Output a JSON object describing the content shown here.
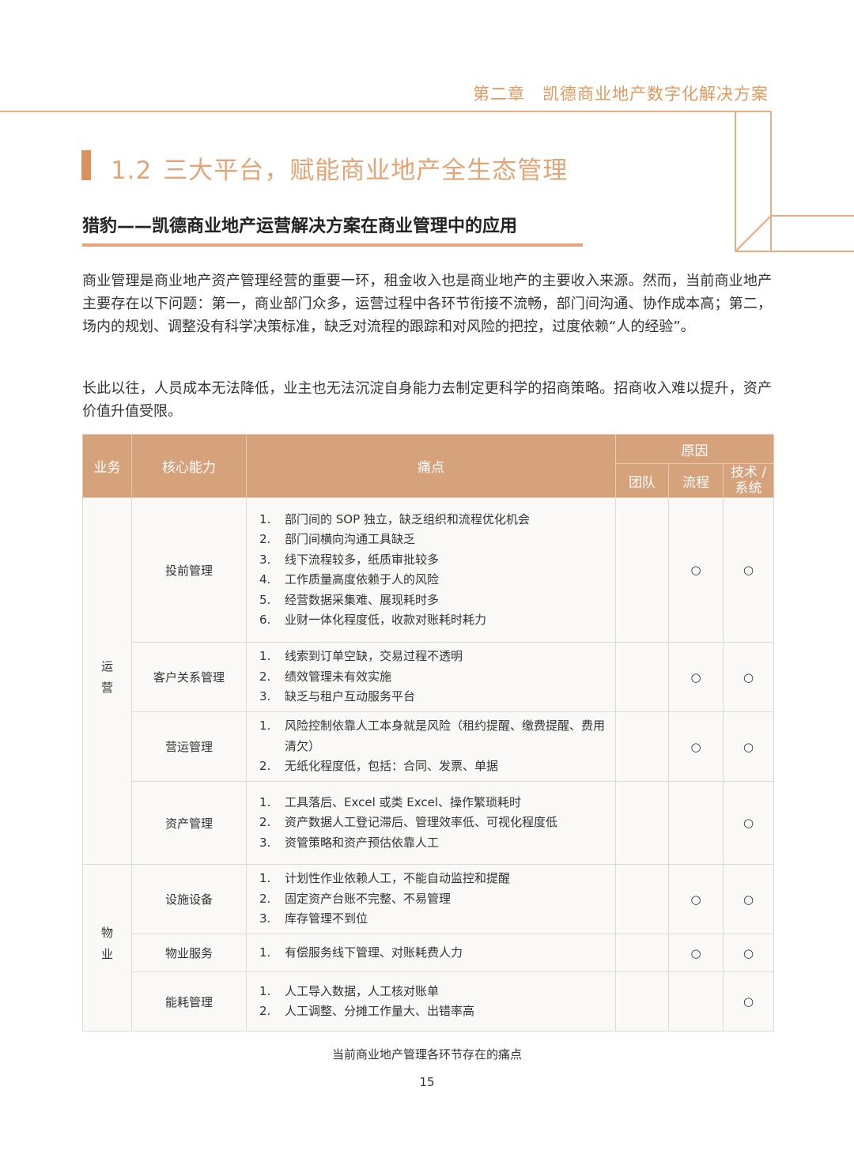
{
  "header": {
    "chapter": "第二章",
    "chapter_title": "凯德商业地产数字化解决方案"
  },
  "section": {
    "number": "1.2",
    "title": "三大平台，赋能商业地产全生态管理"
  },
  "subtitle": "猎豹——凯德商业地产运营解决方案在商业管理中的应用",
  "paragraphs": [
    "商业管理是商业地产资产管理经营的重要一环，租金收入也是商业地产的主要收入来源。然而，当前商业地产主要存在以下问题：第一，商业部门众多，运营过程中各环节衔接不流畅，部门间沟通、协作成本高；第二，场内的规划、调整没有科学决策标准，缺乏对流程的跟踪和对风险的把控，过度依赖“人的经验”。",
    "长此以往，人员成本无法降低，业主也无法沉淀自身能力去制定更科学的招商策略。招商收入难以提升，资产价值升值受限。"
  ],
  "table": {
    "headers": {
      "business": "业务",
      "capability": "核心能力",
      "pain_points": "痛点",
      "causes": "原因",
      "team": "团队",
      "process": "流程",
      "tech": "技术 / 系统"
    },
    "groups": [
      {
        "name": "运营",
        "rows": [
          {
            "capability": "投前管理",
            "points": [
              {
                "no": "1.",
                "text": "部门间的 SOP 独立，缺乏组织和流程优化机会"
              },
              {
                "no": "2.",
                "text": "部门间横向沟通工具缺乏"
              },
              {
                "no": "3.",
                "text": "线下流程较多，纸质审批较多"
              },
              {
                "no": "4.",
                "text": "工作质量高度依赖于人的风险"
              },
              {
                "no": "5.",
                "text": "经营数据采集难、展现耗时多"
              },
              {
                "no": "6.",
                "text": "业财一体化程度低，收款对账耗时耗力"
              }
            ],
            "process": "○",
            "tech": "○"
          },
          {
            "capability": "客户关系管理",
            "points": [
              {
                "no": "1.",
                "text": "线索到订单空缺，交易过程不透明"
              },
              {
                "no": "2.",
                "text": "绩效管理未有效实施"
              },
              {
                "no": "3.",
                "text": "缺乏与租户互动服务平台"
              }
            ],
            "process": "○",
            "tech": "○"
          },
          {
            "capability": "营运管理",
            "points": [
              {
                "no": "1.",
                "text": "风险控制依靠人工本身就是风险（租约提醒、缴费提醒、费用清欠）"
              },
              {
                "no": "2.",
                "text": "无纸化程度低，包括：合同、发票、单据"
              }
            ],
            "process": "○",
            "tech": "○"
          },
          {
            "capability": "资产管理",
            "points": [
              {
                "no": "1.",
                "text": "工具落后、Excel 或类 Excel、操作繁琐耗时"
              },
              {
                "no": "2.",
                "text": "资产数据人工登记滞后、管理效率低、可视化程度低"
              },
              {
                "no": "3.",
                "text": "资管策略和资产预估依靠人工"
              }
            ],
            "tech": "○"
          }
        ]
      },
      {
        "name": "物业",
        "rows": [
          {
            "capability": "设施设备",
            "points": [
              {
                "no": "1.",
                "text": "计划性作业依赖人工，不能自动监控和提醒"
              },
              {
                "no": "2.",
                "text": "固定资产台账不完整、不易管理"
              },
              {
                "no": "3.",
                "text": "库存管理不到位"
              }
            ],
            "process": "○",
            "tech": "○"
          },
          {
            "capability": "物业服务",
            "points": [
              {
                "no": "1.",
                "text": "有偿服务线下管理、对账耗费人力"
              }
            ],
            "process": "○",
            "tech": "○"
          },
          {
            "capability": "能耗管理",
            "points": [
              {
                "no": "1.",
                "text": "人工导入数据，人工核对账单"
              },
              {
                "no": "2.",
                "text": "人工调整、分摊工作量大、出错率高"
              }
            ],
            "tech": "○"
          }
        ]
      }
    ]
  },
  "caption": "当前商业地产管理各环节存在的痛点",
  "page_number": "15"
}
